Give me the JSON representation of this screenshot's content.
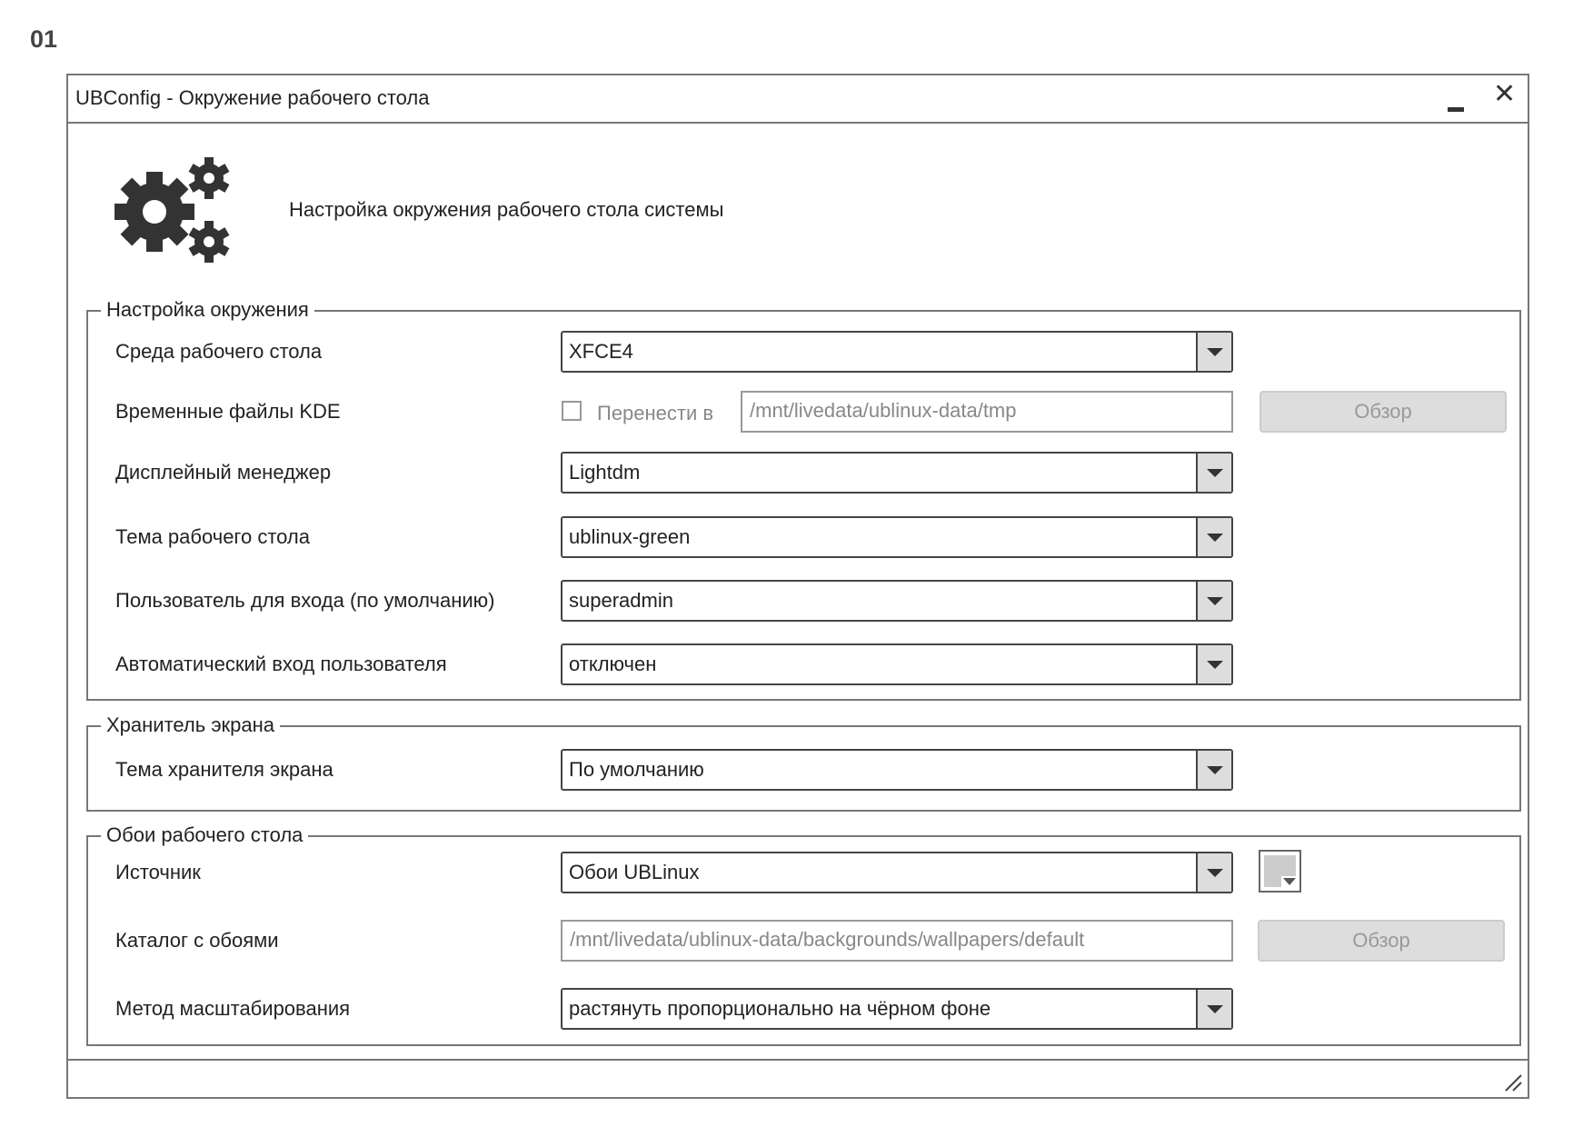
{
  "page_number": "01",
  "window": {
    "title": "UBConfig - Окружение рабочего стола",
    "minimize_icon": "minimize-icon",
    "close_icon": "close-icon",
    "close_glyph": "✕"
  },
  "header": {
    "icon": "gears-icon",
    "text": "Настройка окружения рабочего стола системы"
  },
  "environment": {
    "legend": "Настройка окружения",
    "desktop_env": {
      "label": "Среда рабочего стола",
      "value": "XFCE4"
    },
    "kde_temp": {
      "label": "Временные файлы KDE",
      "checkbox_label": "Перенести в",
      "checked": false,
      "path": "/mnt/livedata/ublinux-data/tmp",
      "browse": "Обзор"
    },
    "display_manager": {
      "label": "Дисплейный менеджер",
      "value": "Lightdm"
    },
    "desktop_theme": {
      "label": "Тема рабочего стола",
      "value": "ublinux-green"
    },
    "default_user": {
      "label": "Пользователь для входа (по умолчанию)",
      "value": "superadmin"
    },
    "autologin": {
      "label": "Автоматический вход пользователя",
      "value": "отключен"
    }
  },
  "screensaver": {
    "legend": "Хранитель экрана",
    "theme": {
      "label": "Тема хранителя экрана",
      "value": "По умолчанию"
    }
  },
  "wallpaper": {
    "legend": "Обои рабочего стола",
    "source": {
      "label": "Источник",
      "value": "Обои UBLinux",
      "color": "#cccccc"
    },
    "directory": {
      "label": "Каталог с обоями",
      "path": "/mnt/livedata/ublinux-data/backgrounds/wallpapers/default",
      "browse": "Обзор"
    },
    "scaling": {
      "label": "Метод масштабирования",
      "value": "растянуть пропорционально на чёрном фоне"
    }
  }
}
